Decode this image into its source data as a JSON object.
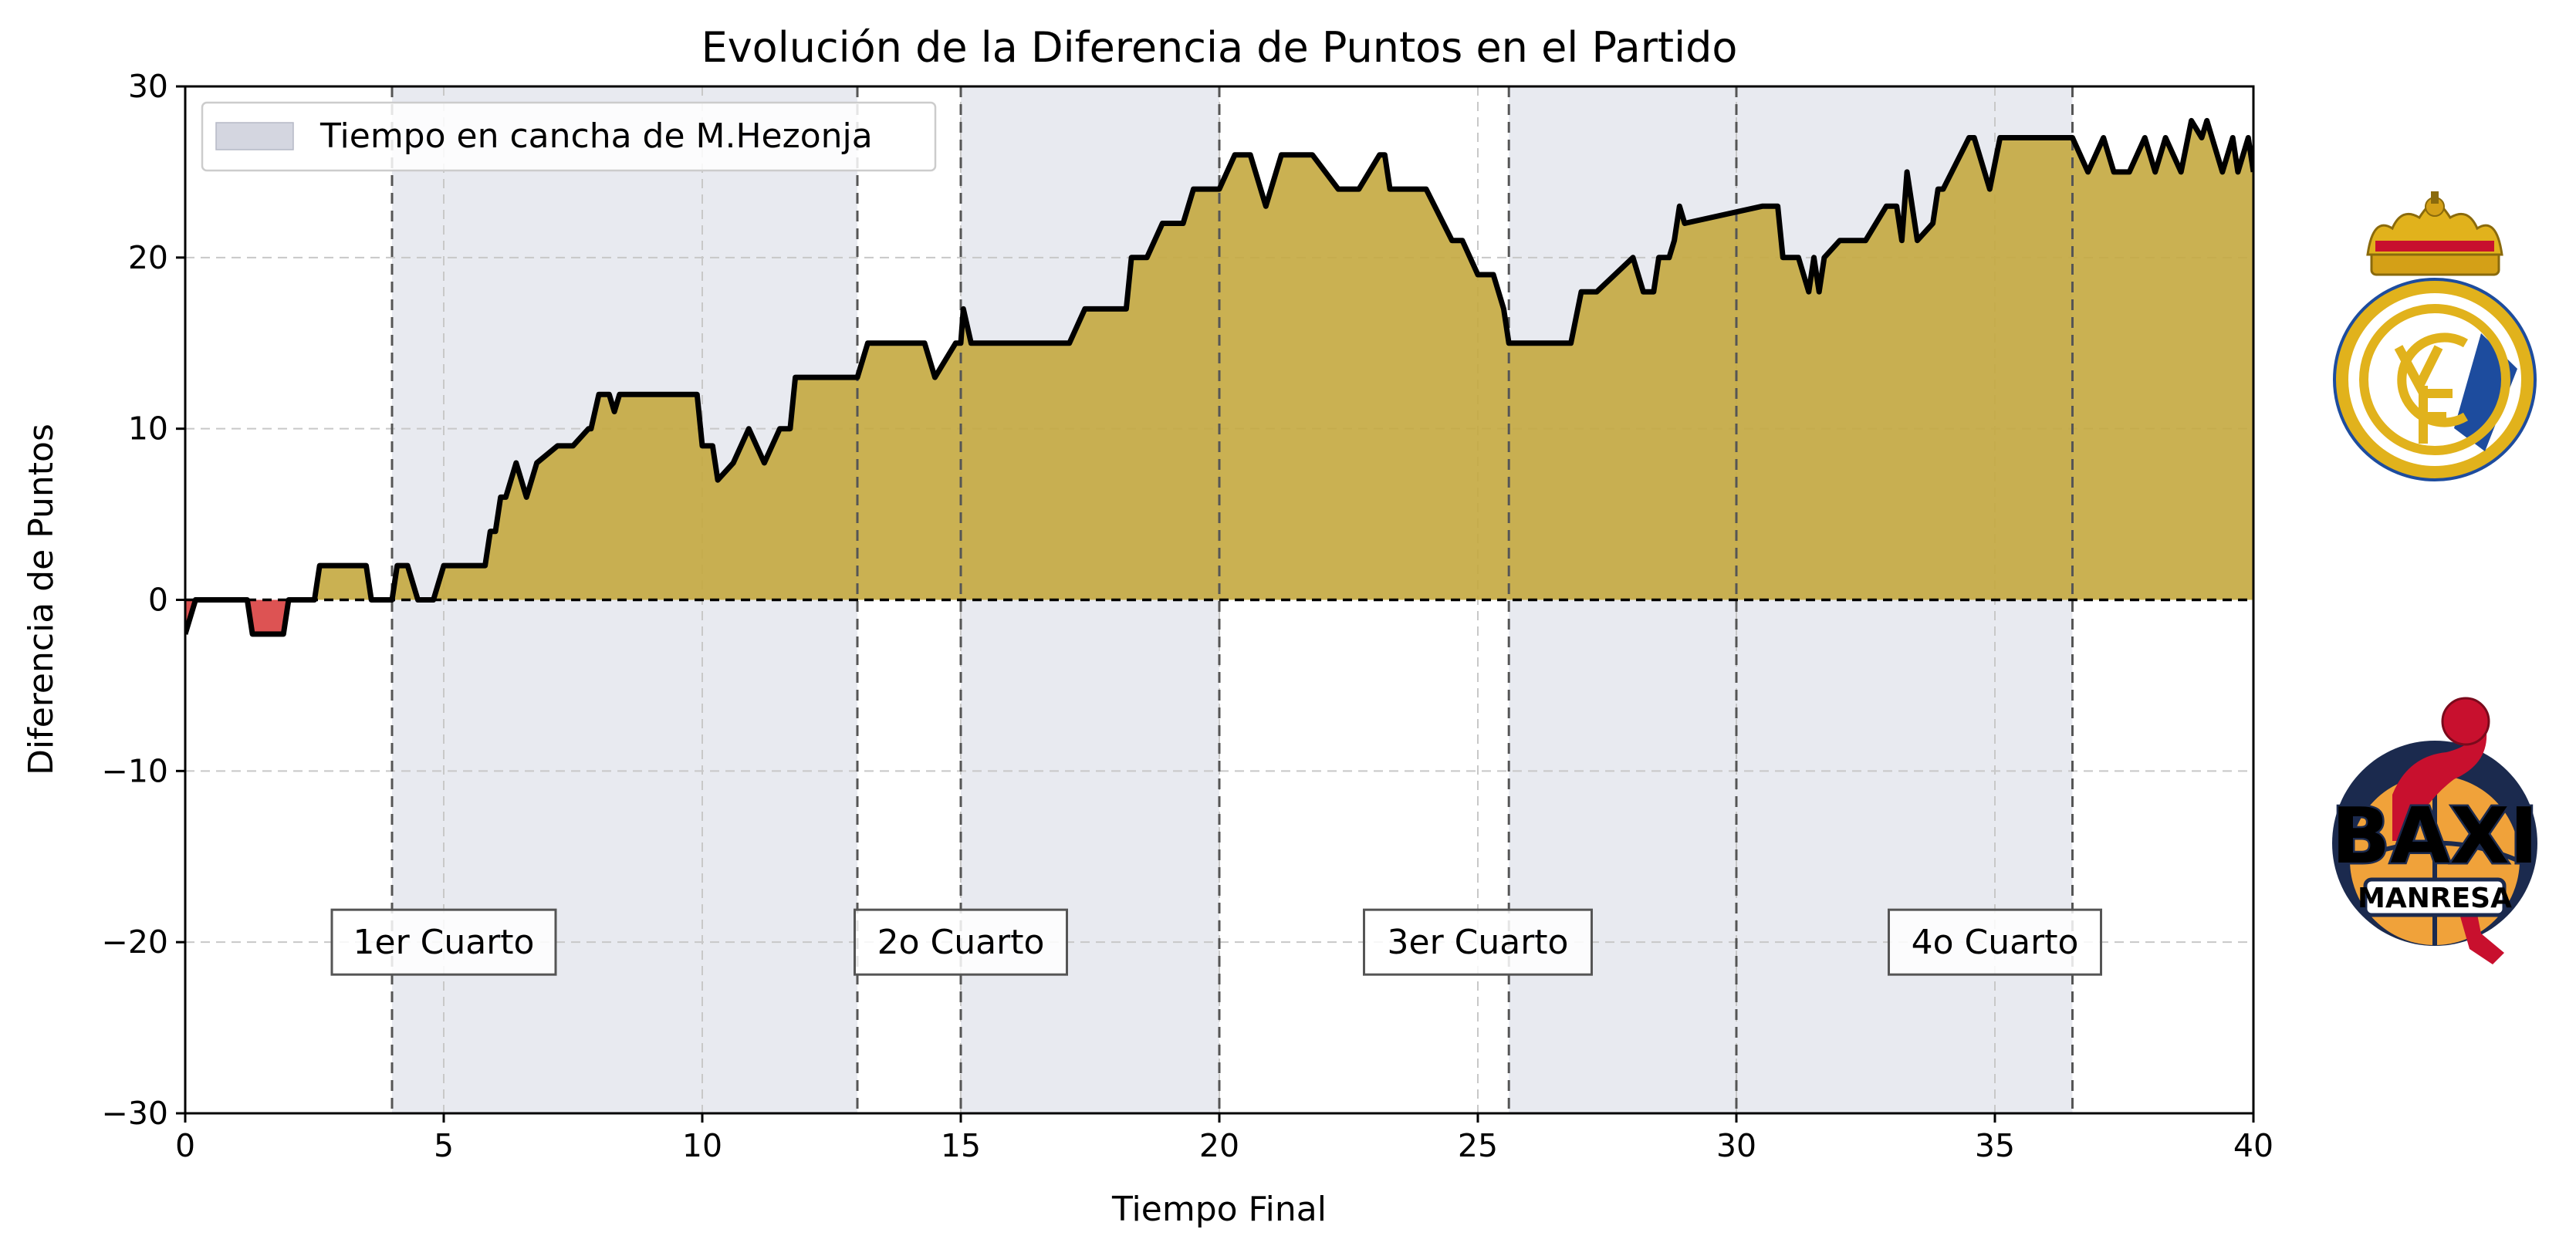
{
  "chart_data": {
    "type": "area",
    "title": "Evolución de la Diferencia de Puntos en el Partido",
    "xlabel": "Tiempo Final",
    "ylabel": "Diferencia de Puntos",
    "xlim": [
      0,
      40
    ],
    "ylim": [
      -30,
      30
    ],
    "xticks": [
      0,
      5,
      10,
      15,
      20,
      25,
      30,
      35,
      40
    ],
    "yticks": [
      -30,
      -20,
      -10,
      0,
      10,
      20,
      30
    ],
    "grid": true,
    "legend": {
      "placement": "top-left",
      "entries": [
        "Tiempo en cancha de M.Hezonja"
      ]
    },
    "on_court_intervals": [
      [
        4.0,
        13.0
      ],
      [
        15.0,
        20.0
      ],
      [
        25.6,
        36.5
      ]
    ],
    "quarter_boundaries": [
      4.0,
      13.0,
      15.0,
      20.0,
      25.6,
      30.0,
      36.5
    ],
    "quarter_labels": [
      {
        "label": "1er Cuarto",
        "x": 5.0,
        "y": -20
      },
      {
        "label": "2o Cuarto",
        "x": 15.0,
        "y": -20
      },
      {
        "label": "3er Cuarto",
        "x": 25.0,
        "y": -20
      },
      {
        "label": "4o Cuarto",
        "x": 35.0,
        "y": -20
      }
    ],
    "colors": {
      "positive_fill": "#c4a93f",
      "negative_fill": "#d94040",
      "line": "#000000",
      "on_court_band": "#e8eaf0"
    },
    "series": [
      {
        "x": [
          0,
          0.2,
          0.4,
          1.2,
          1.3,
          1.4,
          1.9,
          2.0,
          2.5,
          2.6,
          3.5,
          3.6,
          3.9,
          4.0,
          4.1,
          4.3,
          4.5,
          4.6,
          4.8,
          5.0,
          5.1,
          5.8,
          5.9,
          6.0,
          6.1,
          6.2,
          6.4,
          6.6,
          6.8,
          7.2,
          7.5,
          7.8,
          7.85,
          8.0,
          8.2,
          8.3,
          8.4,
          8.5,
          9.3,
          9.6,
          9.9,
          10.0,
          10.2,
          10.3,
          10.6,
          10.9,
          11.2,
          11.5,
          11.7,
          11.8,
          12.4,
          12.9,
          13.0,
          13.2,
          13.9,
          14.0,
          14.3,
          14.5,
          14.9,
          15.0,
          15.05,
          15.2,
          16.8,
          16.9,
          17.1,
          17.4,
          17.9,
          18.2,
          18.3,
          18.6,
          18.9,
          19.3,
          19.5,
          20.0,
          20.3,
          20.6,
          20.9,
          21.2,
          21.6,
          21.8,
          22.3,
          22.7,
          23.1,
          23.2,
          23.3,
          23.9,
          24.0,
          24.5,
          24.7,
          25.0,
          25.3,
          25.5,
          25.6,
          26.8,
          27.0,
          27.3,
          28.0,
          28.2,
          28.4,
          28.5,
          28.7,
          28.8,
          28.9,
          29.0,
          30.5,
          30.8,
          30.9,
          31.2,
          31.3,
          31.4,
          31.5,
          31.6,
          31.7,
          32.0,
          32.5,
          32.9,
          33.0,
          33.1,
          33.2,
          33.3,
          33.5,
          33.8,
          33.9,
          34.0,
          34.5,
          34.6,
          34.9,
          35.1,
          35.3,
          35.6,
          36.5,
          36.8,
          37.1,
          37.3,
          37.6,
          37.9,
          38.1,
          38.3,
          38.6,
          38.8,
          39.0,
          39.1,
          39.4,
          39.6,
          39.7,
          39.9,
          40.0
        ],
        "values": [
          -2,
          0,
          0,
          0,
          -2,
          -2,
          -2,
          0,
          0,
          2,
          2,
          0,
          0,
          0,
          2,
          2,
          0,
          0,
          0,
          2,
          2,
          2,
          4,
          4,
          6,
          6,
          8,
          6,
          8,
          9,
          9,
          10,
          10,
          12,
          12,
          11,
          12,
          12,
          12,
          12,
          12,
          9,
          9,
          7,
          8,
          10,
          8,
          10,
          10,
          13,
          13,
          13,
          13,
          15,
          15,
          15,
          15,
          13,
          15,
          15,
          17,
          15,
          15,
          15,
          15,
          17,
          17,
          17,
          20,
          20,
          22,
          22,
          24,
          24,
          26,
          26,
          23,
          26,
          26,
          26,
          24,
          24,
          26,
          26,
          24,
          24,
          24,
          21,
          21,
          19,
          19,
          17,
          15,
          15,
          18,
          18,
          20,
          18,
          18,
          20,
          20,
          21,
          23,
          22,
          23,
          23,
          20,
          20,
          19,
          18,
          20,
          18,
          20,
          21,
          21,
          23,
          23,
          23,
          21,
          25,
          21,
          22,
          24,
          24,
          27,
          27,
          24,
          27,
          27,
          27,
          27,
          25,
          27,
          25,
          25,
          27,
          25,
          27,
          25,
          28,
          27,
          28,
          25,
          27,
          25,
          27,
          25
        ]
      }
    ]
  }
}
